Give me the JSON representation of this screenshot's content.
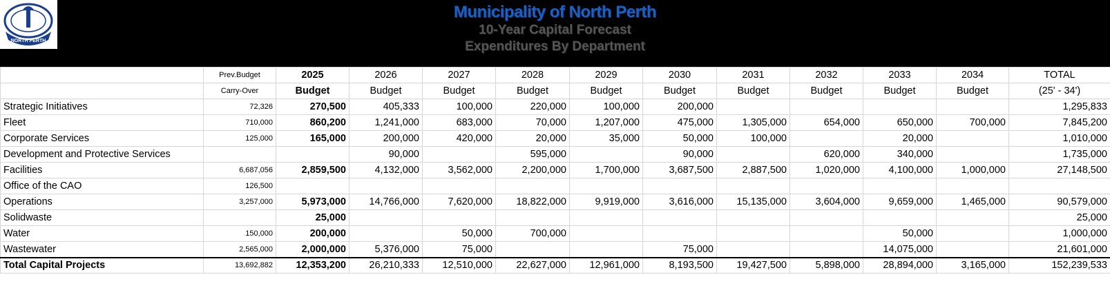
{
  "header": {
    "title": "Municipality of North Perth",
    "subtitle1": "10-Year Capital Forecast",
    "subtitle2": "Expenditures By Department"
  },
  "logo": {
    "text": "NORTH PERTH"
  },
  "columns": {
    "row1": [
      "Prev.Budget",
      "2025",
      "2026",
      "2027",
      "2028",
      "2029",
      "2030",
      "2031",
      "2032",
      "2033",
      "2034",
      "TOTAL"
    ],
    "row2": [
      "Carry-Over",
      "Budget",
      "Budget",
      "Budget",
      "Budget",
      "Budget",
      "Budget",
      "Budget",
      "Budget",
      "Budget",
      "Budget",
      "(25' - 34')"
    ]
  },
  "rows": [
    {
      "label": "Strategic Initiatives",
      "vals": [
        "72,326",
        "270,500",
        "405,333",
        "100,000",
        "220,000",
        "100,000",
        "200,000",
        "",
        "",
        "",
        "",
        "1,295,833"
      ]
    },
    {
      "label": "Fleet",
      "vals": [
        "710,000",
        "860,200",
        "1,241,000",
        "683,000",
        "70,000",
        "1,207,000",
        "475,000",
        "1,305,000",
        "654,000",
        "650,000",
        "700,000",
        "7,845,200"
      ]
    },
    {
      "label": "Corporate Services",
      "vals": [
        "125,000",
        "165,000",
        "200,000",
        "420,000",
        "20,000",
        "35,000",
        "50,000",
        "100,000",
        "",
        "20,000",
        "",
        "1,010,000"
      ]
    },
    {
      "label": "Development and Protective Services",
      "vals": [
        "",
        "",
        "90,000",
        "",
        "595,000",
        "",
        "90,000",
        "",
        "620,000",
        "340,000",
        "",
        "1,735,000"
      ]
    },
    {
      "label": "Facilities",
      "vals": [
        "6,687,056",
        "2,859,500",
        "4,132,000",
        "3,562,000",
        "2,200,000",
        "1,700,000",
        "3,687,500",
        "2,887,500",
        "1,020,000",
        "4,100,000",
        "1,000,000",
        "27,148,500"
      ]
    },
    {
      "label": "Office of the CAO",
      "vals": [
        "126,500",
        "",
        "",
        "",
        "",
        "",
        "",
        "",
        "",
        "",
        "",
        ""
      ]
    },
    {
      "label": "Operations",
      "vals": [
        "3,257,000",
        "5,973,000",
        "14,766,000",
        "7,620,000",
        "18,822,000",
        "9,919,000",
        "3,616,000",
        "15,135,000",
        "3,604,000",
        "9,659,000",
        "1,465,000",
        "90,579,000"
      ]
    },
    {
      "label": "Solidwaste",
      "vals": [
        "",
        "25,000",
        "",
        "",
        "",
        "",
        "",
        "",
        "",
        "",
        "",
        "25,000"
      ]
    },
    {
      "label": "Water",
      "vals": [
        "150,000",
        "200,000",
        "",
        "50,000",
        "700,000",
        "",
        "",
        "",
        "",
        "50,000",
        "",
        "1,000,000"
      ]
    },
    {
      "label": "Wastewater",
      "vals": [
        "2,565,000",
        "2,000,000",
        "5,376,000",
        "75,000",
        "",
        "",
        "75,000",
        "",
        "",
        "14,075,000",
        "",
        "21,601,000"
      ]
    }
  ],
  "total": {
    "label": "Total Capital Projects",
    "vals": [
      "13,692,882",
      "12,353,200",
      "26,210,333",
      "12,510,000",
      "22,627,000",
      "12,961,000",
      "8,193,500",
      "19,427,500",
      "5,898,000",
      "28,894,000",
      "3,165,000",
      "152,239,533"
    ]
  }
}
